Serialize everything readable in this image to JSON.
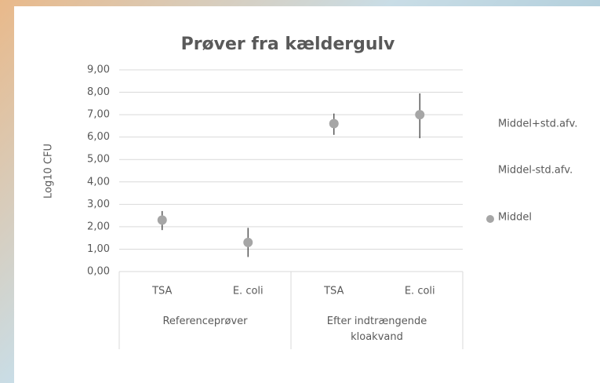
{
  "chart_data": {
    "type": "highlow",
    "title": "Prøver  fra kældergulv",
    "y_label": "Log10  CFU",
    "categories": [
      "TSA",
      "E. coli",
      "TSA",
      "E. coli"
    ],
    "groups": [
      {
        "name": "Referenceprøver",
        "count": 2
      },
      {
        "name": "Efter indtrængende kloakvand",
        "count": 2
      }
    ],
    "series": [
      {
        "name": "Middel+std.afv.",
        "color": "#404040",
        "values": [
          2.7,
          1.95,
          7.05,
          7.95
        ]
      },
      {
        "name": "Middel-std.afv.",
        "color": "#404040",
        "values": [
          1.85,
          0.65,
          6.1,
          5.95
        ]
      },
      {
        "name": "Middel",
        "color": "#a6a6a6",
        "values": [
          2.3,
          1.3,
          6.6,
          7.0
        ]
      }
    ],
    "ylim": [
      0,
      9
    ],
    "yticks": [
      {
        "value": 0,
        "label": "0,00"
      },
      {
        "value": 1,
        "label": "1,00"
      },
      {
        "value": 2,
        "label": "2,00"
      },
      {
        "value": 3,
        "label": "3,00"
      },
      {
        "value": 4,
        "label": "4,00"
      },
      {
        "value": 5,
        "label": "5,00"
      },
      {
        "value": 6,
        "label": "6,00"
      },
      {
        "value": 7,
        "label": "7,00"
      },
      {
        "value": 8,
        "label": "8,00"
      },
      {
        "value": 9,
        "label": "9,00"
      }
    ],
    "grid": true
  }
}
